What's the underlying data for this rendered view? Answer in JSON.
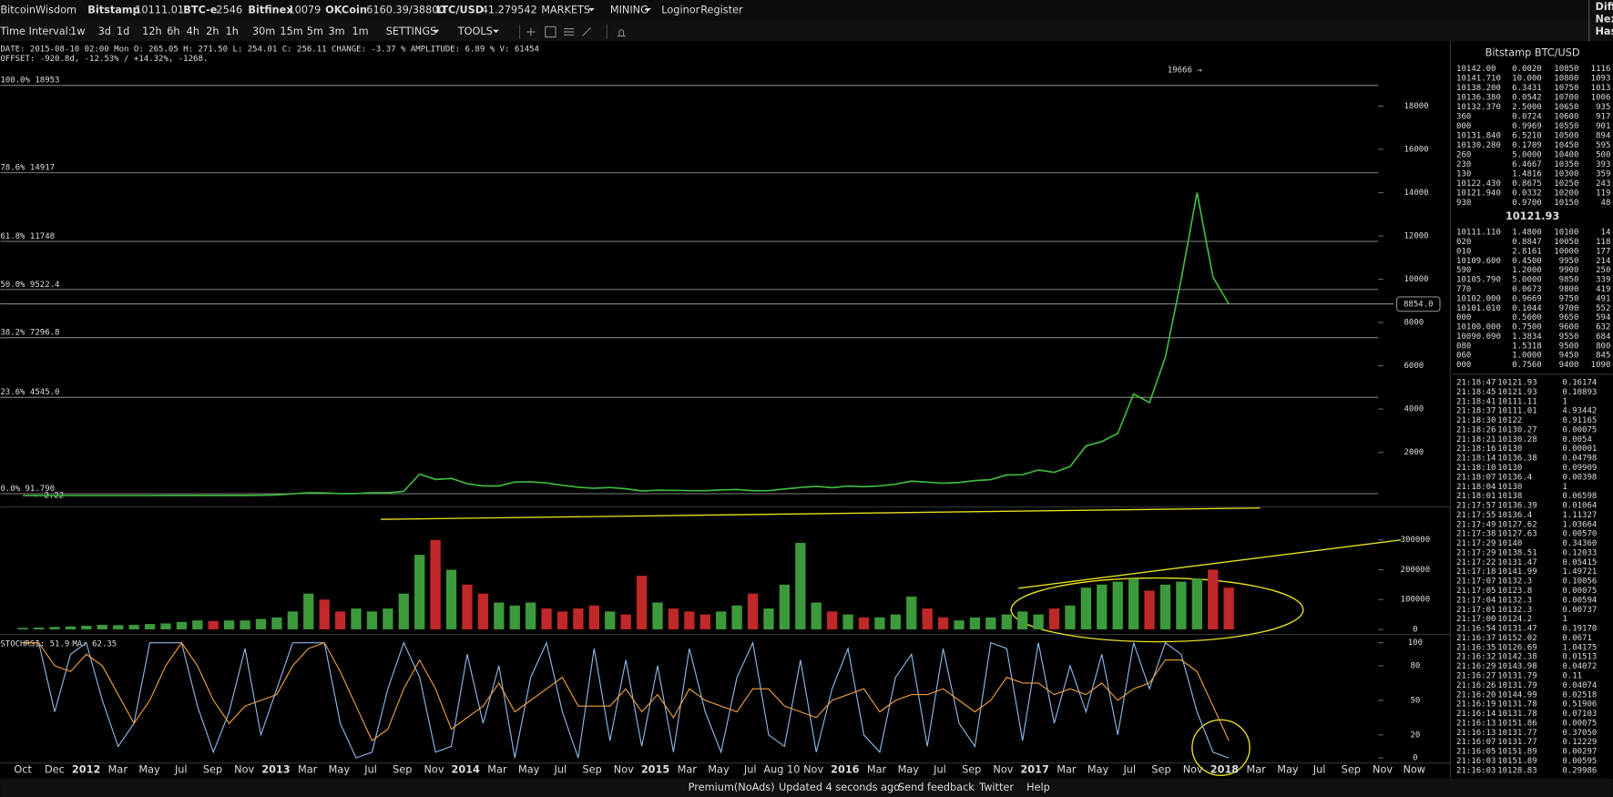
{
  "header": {
    "logo": "BitcoinWisdom",
    "tickers": [
      {
        "name": "Bitstamp",
        "price": "10111.01"
      },
      {
        "name": "BTC-e",
        "price": "2546"
      },
      {
        "name": "Bitfinex",
        "price": "10079"
      },
      {
        "name": "OKCoin",
        "price": "6160.39/38800"
      },
      {
        "name": "LTC/USD",
        "price": "41.279542"
      }
    ],
    "menus": [
      "MARKETS",
      "MINING"
    ],
    "login": "Login",
    "or": "or",
    "register": "Register",
    "corner": [
      "Diff",
      "Nex",
      "Has"
    ]
  },
  "toolbar": {
    "label": "Time Interval:",
    "intervals": [
      "1w",
      "3d",
      "1d",
      "12h",
      "6h",
      "4h",
      "2h",
      "1h",
      "30m",
      "15m",
      "5m",
      "3m",
      "1m"
    ],
    "settings": "SETTINGS",
    "tools": "TOOLS"
  },
  "info": {
    "line1": "DATE: 2015-08-10 02:00 Mon   O: 265.05   H: 271.50   L: 254.01   C: 256.11   CHANGE: -3.37 %   AMPLITUDE: 6.89 %   V: 61454",
    "line2": "OFFSET: -920.8d, -12.53% / +14.32%, -1268."
  },
  "price_chart": {
    "color": "#3fb83f",
    "ylim": [
      0,
      21000
    ],
    "yticks": [
      2000,
      4000,
      6000,
      8000,
      10000,
      12000,
      14000,
      16000,
      18000
    ],
    "fib": [
      {
        "value": 18953,
        "label": "100.0% 18953"
      },
      {
        "value": 14917,
        "label": "78.6% 14917"
      },
      {
        "value": 11748,
        "label": "61.8% 11748"
      },
      {
        "value": 9522.4,
        "label": "50.0% 9522.4"
      },
      {
        "value": 7296.8,
        "label": "38.2% 7296.8"
      },
      {
        "value": 4545.0,
        "label": "23.6% 4545.0"
      },
      {
        "value": 91.79,
        "label": "0.0% 91.790"
      }
    ],
    "low_label": "← 2.22",
    "high_label": "19666 →",
    "current": {
      "value": 8854,
      "label": "8854.0"
    },
    "values": [
      3,
      3,
      4,
      5,
      5,
      5,
      5,
      5,
      7,
      9,
      10,
      12,
      11,
      12,
      13,
      20,
      33,
      90,
      140,
      130,
      95,
      100,
      135,
      140,
      200,
      1000,
      750,
      800,
      550,
      450,
      450,
      630,
      640,
      590,
      480,
      390,
      340,
      380,
      320,
      220,
      250,
      245,
      235,
      230,
      265,
      285,
      230,
      235,
      310,
      380,
      430,
      370,
      440,
      415,
      450,
      530,
      670,
      625,
      575,
      610,
      700,
      740,
      960,
      970,
      1190,
      1080,
      1350,
      2300,
      2500,
      2880,
      4700,
      4300,
      6400,
      10000,
      14000,
      10100,
      8854
    ]
  },
  "volume_chart": {
    "up_color": "#3c9a3c",
    "down_color": "#c0282a",
    "ylim": [
      0,
      400000
    ],
    "yticks": [
      0,
      100000,
      200000,
      300000
    ],
    "values": [
      5000,
      6000,
      8000,
      10000,
      12000,
      15000,
      14000,
      15000,
      18000,
      20000,
      25000,
      30000,
      28000,
      30000,
      30000,
      35000,
      40000,
      60000,
      120000,
      100000,
      60000,
      70000,
      60000,
      70000,
      120000,
      250000,
      300000,
      200000,
      150000,
      120000,
      90000,
      80000,
      90000,
      70000,
      60000,
      70000,
      80000,
      60000,
      50000,
      180000,
      90000,
      70000,
      60000,
      50000,
      60000,
      80000,
      120000,
      70000,
      150000,
      290000,
      90000,
      60000,
      50000,
      40000,
      40000,
      50000,
      110000,
      70000,
      40000,
      30000,
      40000,
      40000,
      50000,
      60000,
      50000,
      70000,
      80000,
      140000,
      150000,
      160000,
      170000,
      130000,
      150000,
      160000,
      170000,
      200000,
      140000
    ]
  },
  "stoch_chart": {
    "label": "STOCHRSI: 51.9",
    "ma_label": "MA: 62.35",
    "ylim": [
      0,
      100
    ],
    "yticks": [
      0,
      20,
      50,
      80,
      100
    ],
    "series": [
      {
        "color": "#8fb8e8",
        "values": [
          100,
          100,
          40,
          90,
          100,
          50,
          10,
          30,
          100,
          100,
          100,
          45,
          5,
          40,
          95,
          20,
          60,
          100,
          100,
          100,
          30,
          0,
          5,
          60,
          100,
          70,
          5,
          10,
          90,
          30,
          80,
          0,
          70,
          100,
          40,
          0,
          95,
          15,
          85,
          10,
          80,
          5,
          95,
          40,
          5,
          70,
          100,
          20,
          10,
          85,
          5,
          60,
          95,
          20,
          5,
          70,
          90,
          10,
          95,
          30,
          10,
          100,
          95,
          15,
          100,
          30,
          80,
          40,
          90,
          20,
          100,
          60,
          100,
          90,
          40,
          5,
          0
        ]
      },
      {
        "color": "#f0a040",
        "values": [
          100,
          100,
          80,
          75,
          90,
          80,
          55,
          30,
          50,
          80,
          100,
          80,
          50,
          30,
          45,
          50,
          55,
          80,
          95,
          100,
          75,
          45,
          15,
          25,
          60,
          85,
          60,
          25,
          35,
          45,
          65,
          40,
          50,
          60,
          70,
          45,
          45,
          45,
          60,
          40,
          55,
          35,
          60,
          50,
          45,
          40,
          60,
          60,
          45,
          40,
          35,
          50,
          55,
          60,
          40,
          50,
          55,
          55,
          60,
          50,
          40,
          50,
          70,
          65,
          65,
          55,
          60,
          55,
          65,
          50,
          60,
          65,
          85,
          85,
          75,
          45,
          15
        ]
      }
    ]
  },
  "x_labels": [
    "Oct",
    "Dec",
    "2012",
    "Mar",
    "May",
    "Jul",
    "Sep",
    "Nov",
    "2013",
    "Mar",
    "May",
    "Jul",
    "Sep",
    "Nov",
    "2014",
    "Mar",
    "May",
    "Jul",
    "Sep",
    "Nov",
    "2015",
    "Mar",
    "May",
    "Jul",
    "Aug 10",
    "Nov",
    "2016",
    "Mar",
    "May",
    "Jul",
    "Sep",
    "Nov",
    "2017",
    "Mar",
    "May",
    "Jul",
    "Sep",
    "Nov",
    "2018",
    "Mar",
    "May",
    "Jul",
    "Sep",
    "Nov",
    "Now"
  ],
  "order_book": {
    "title": "Bitstamp BTC/USD",
    "last": "10121.93",
    "asks": [
      [
        "10142.00",
        "0.0020",
        "10850",
        "1116"
      ],
      [
        "10141.710",
        "10.000",
        "10800",
        "1093"
      ],
      [
        "10138.200",
        "6.3431",
        "10750",
        "1013"
      ],
      [
        "10136.380",
        "0.0542",
        "10700",
        "1006"
      ],
      [
        "10132.370",
        "2.5000",
        "10650",
        "935"
      ],
      [
        "360",
        "0.0724",
        "10600",
        "917"
      ],
      [
        "000",
        "0.9969",
        "10550",
        "901"
      ],
      [
        "10131.840",
        "6.5210",
        "10500",
        "894"
      ],
      [
        "10130.280",
        "0.1709",
        "10450",
        "595"
      ],
      [
        "260",
        "5.0000",
        "10400",
        "500"
      ],
      [
        "230",
        "6.4667",
        "10350",
        "393"
      ],
      [
        "130",
        "1.4816",
        "10300",
        "359"
      ],
      [
        "10122.430",
        "0.8675",
        "10250",
        "243"
      ],
      [
        "10121.940",
        "0.0332",
        "10200",
        "119"
      ],
      [
        "930",
        "0.9700",
        "10150",
        "48"
      ]
    ],
    "bids": [
      [
        "10111.110",
        "1.4800",
        "10100",
        "14"
      ],
      [
        "020",
        "0.8847",
        "10050",
        "118"
      ],
      [
        "010",
        "2.8161",
        "10000",
        "177"
      ],
      [
        "10109.600",
        "0.4500",
        "9950",
        "214"
      ],
      [
        "590",
        "1.2000",
        "9900",
        "250"
      ],
      [
        "10105.790",
        "5.0000",
        "9850",
        "339"
      ],
      [
        "770",
        "0.0673",
        "9800",
        "419"
      ],
      [
        "10102.000",
        "0.9669",
        "9750",
        "491"
      ],
      [
        "10101.010",
        "0.1044",
        "9700",
        "552"
      ],
      [
        "000",
        "0.5600",
        "9650",
        "594"
      ],
      [
        "10100.000",
        "0.7500",
        "9600",
        "632"
      ],
      [
        "10090.090",
        "1.3834",
        "9550",
        "684"
      ],
      [
        "080",
        "1.5318",
        "9500",
        "800"
      ],
      [
        "060",
        "1.0000",
        "9450",
        "845"
      ],
      [
        "000",
        "0.7560",
        "9400",
        "1090"
      ]
    ]
  },
  "trades": [
    [
      "21:18:47",
      "10121.93",
      "0.16174",
      "#4fd04f"
    ],
    [
      "21:18:45",
      "10121.93",
      "0.10893",
      "#4fd04f"
    ],
    [
      "21:18:41",
      "10111.11",
      "1",
      "#e83838"
    ],
    [
      "21:18:37",
      "10111.01",
      "4.93442",
      "#e83838"
    ],
    [
      "21:18:30",
      "10122",
      "0.91165",
      "#e83838"
    ],
    [
      "21:18:26",
      "10130.27",
      "0.00075",
      "#4fd04f"
    ],
    [
      "21:18:21",
      "10130.28",
      "0.0054",
      "#e83838"
    ],
    [
      "21:18:16",
      "10130",
      "0.00001",
      "#4fd04f"
    ],
    [
      "21:18:14",
      "10136.38",
      "0.04798",
      "#4fd04f"
    ],
    [
      "21:18:10",
      "10130",
      "0.09909",
      "#e83838"
    ],
    [
      "21:18:07",
      "10136.4",
      "0.00398",
      "#4fd04f"
    ],
    [
      "21:18:04",
      "10130",
      "1",
      "#e83838"
    ],
    [
      "21:18:01",
      "10138",
      "0.06598",
      "#4fd04f"
    ],
    [
      "21:17:57",
      "10136.39",
      "0.01064",
      "#4fd04f"
    ],
    [
      "21:17:55",
      "10136.4",
      "1.11327",
      "#4fd04f"
    ],
    [
      "21:17:49",
      "10127.62",
      "1.03664",
      "#e83838"
    ],
    [
      "21:17:38",
      "10127.63",
      "0.00570",
      "#e83838"
    ],
    [
      "21:17:29",
      "10140",
      "0.34360",
      "#4fd04f"
    ],
    [
      "21:17:29",
      "10138.51",
      "0.12033",
      "#4fd04f"
    ],
    [
      "21:17:22",
      "10131.47",
      "0.05415",
      "#e83838"
    ],
    [
      "21:17:18",
      "10141.99",
      "1.49721",
      "#4fd04f"
    ],
    [
      "21:17:07",
      "10132.3",
      "0.10056",
      "#4fd04f"
    ],
    [
      "21:17:05",
      "10123.8",
      "0.00075",
      "#e83838"
    ],
    [
      "21:17:04",
      "10132.3",
      "0.00594",
      "#4fd04f"
    ],
    [
      "21:17:01",
      "10132.3",
      "0.00737",
      "#4fd04f"
    ],
    [
      "21:17:00",
      "10124.2",
      "1",
      "#e83838"
    ],
    [
      "21:16:54",
      "10131.47",
      "0.19170",
      "#4fd04f"
    ],
    [
      "21:16:37",
      "10152.02",
      "0.0671",
      "#4fd04f"
    ],
    [
      "21:16:35",
      "10126.69",
      "1.04175",
      "#e83838"
    ],
    [
      "21:16:32",
      "10142.38",
      "0.01513",
      "#4fd04f"
    ],
    [
      "21:16:29",
      "10143.98",
      "0.04072",
      "#4fd04f"
    ],
    [
      "21:16:27",
      "10131.79",
      "0.11",
      "#e83838"
    ],
    [
      "21:16:26",
      "10131.79",
      "0.04074",
      "#e83838"
    ],
    [
      "21:16:20",
      "10144.99",
      "0.02518",
      "#4fd04f"
    ],
    [
      "21:16:19",
      "10131.78",
      "0.51906",
      "#e83838"
    ],
    [
      "21:16:14",
      "10131.78",
      "0.07103",
      "#e83838"
    ],
    [
      "21:16:13",
      "10151.86",
      "0.00075",
      "#4fd04f"
    ],
    [
      "21:16:13",
      "10131.77",
      "0.37050",
      "#e83838"
    ],
    [
      "21:16:07",
      "10131.77",
      "0.12229",
      "#e83838"
    ],
    [
      "21:16:05",
      "10151.89",
      "0.00297",
      "#4fd04f"
    ],
    [
      "21:16:03",
      "10151.89",
      "0.00595",
      "#4fd04f"
    ],
    [
      "21:16:03",
      "10128.83",
      "0.29986",
      "#e83838"
    ]
  ],
  "footer": {
    "premium": "Premium(NoAds)",
    "status": "Updated 4 seconds ago",
    "feedback": "Send feedback",
    "twitter": "Twitter",
    "help": "Help"
  }
}
